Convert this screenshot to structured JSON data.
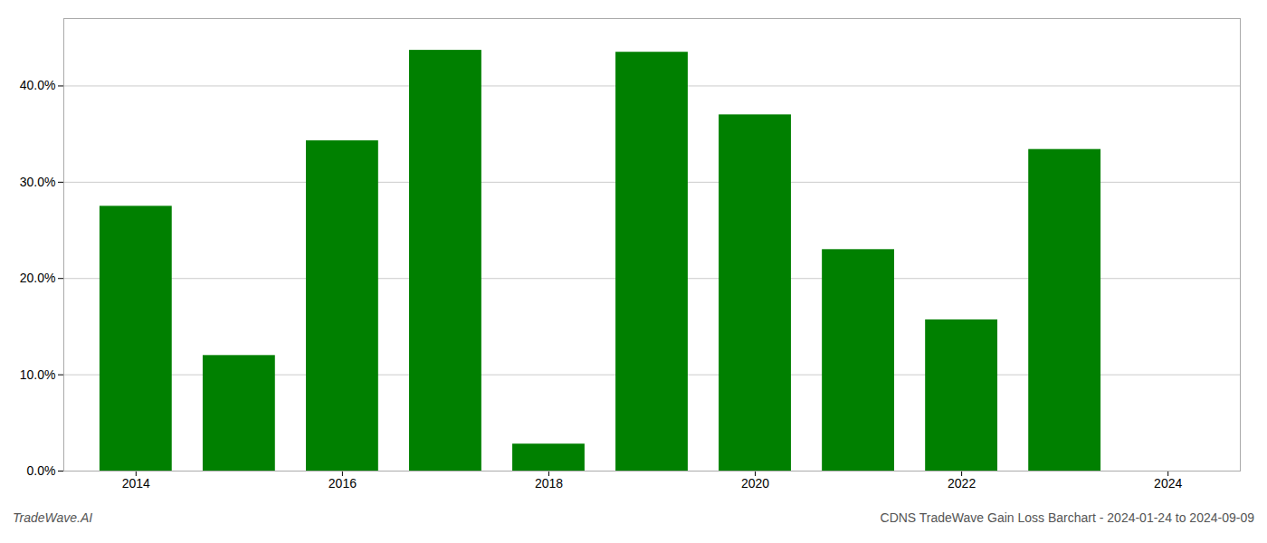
{
  "chart_data": {
    "type": "bar",
    "x": [
      2014,
      2015,
      2016,
      2017,
      2018,
      2019,
      2020,
      2021,
      2022,
      2023
    ],
    "values": [
      0.275,
      0.12,
      0.343,
      0.437,
      0.028,
      0.435,
      0.37,
      0.23,
      0.157,
      0.334
    ],
    "color": "#008000",
    "xlim": [
      2013.3,
      2024.7
    ],
    "xticks": [
      2014,
      2016,
      2018,
      2020,
      2022,
      2024
    ],
    "ylim": [
      0,
      0.47
    ],
    "yticks": [
      {
        "value": 0.0,
        "label": "0.0%"
      },
      {
        "value": 0.1,
        "label": "10.0%"
      },
      {
        "value": 0.2,
        "label": "20.0%"
      },
      {
        "value": 0.3,
        "label": "30.0%"
      },
      {
        "value": 0.4,
        "label": "40.0%"
      }
    ],
    "grid": true,
    "annotations": [
      "TradeWave.AI",
      "CDNS TradeWave Gain Loss Barchart - 2024-01-24 to 2024-09-09"
    ]
  }
}
